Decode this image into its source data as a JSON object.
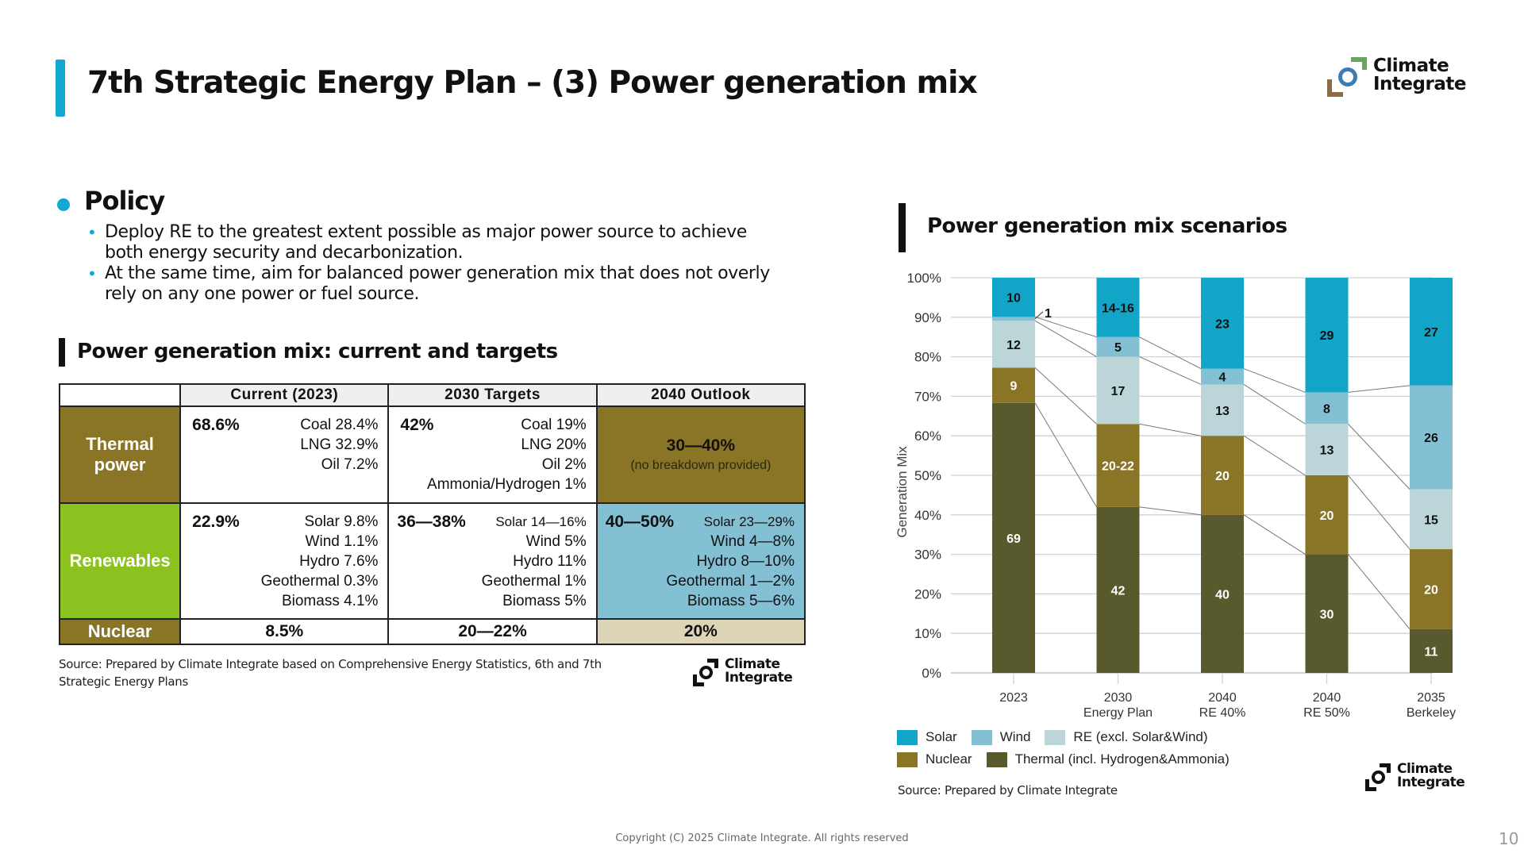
{
  "header": {
    "title": "7th Strategic Energy Plan – (3) Power generation mix",
    "accent_color": "#11a9d3"
  },
  "logo": {
    "line1": "Climate",
    "line2": "Integrate"
  },
  "policy": {
    "heading": "Policy",
    "items": [
      "Deploy RE to the greatest extent possible as major power source to achieve both energy security and decarbonization.",
      "At the same time, aim for balanced power generation mix that does not overly rely on any one power or fuel source."
    ]
  },
  "table_section": {
    "title": "Power generation mix: current and targets",
    "columns": [
      "Current (2023)",
      "2030 Targets",
      "2040 Outlook"
    ],
    "rows": {
      "thermal": {
        "label_line1": "Thermal",
        "label_line2": "power",
        "current_total": "68.6%",
        "current_breakdown": [
          "Coal 28.4%",
          "LNG 32.9%",
          "Oil 7.2%"
        ],
        "target_total": "42%",
        "target_breakdown": [
          "Coal 19%",
          "LNG 20%",
          "Oil 2%",
          "Ammonia/Hydrogen 1%"
        ],
        "outlook_total": "30—40%",
        "outlook_note": "(no breakdown provided)"
      },
      "renewables": {
        "label": "Renewables",
        "current_total": "22.9%",
        "current_breakdown": [
          "Solar 9.8%",
          "Wind 1.1%",
          "Hydro 7.6%",
          "Geothermal 0.3%",
          "Biomass 4.1%"
        ],
        "target_total": "36—38%",
        "target_breakdown": [
          "Solar 14—16%",
          "Wind 5%",
          "Hydro 11%",
          "Geothermal 1%",
          "Biomass 5%"
        ],
        "outlook_total": "40—50%",
        "outlook_breakdown": [
          "Solar 23—29%",
          "Wind 4—8%",
          "Hydro 8—10%",
          "Geothermal 1—2%",
          "Biomass 5—6%"
        ]
      },
      "nuclear": {
        "label": "Nuclear",
        "current": "8.5%",
        "target": "20—22%",
        "outlook": "20%"
      }
    },
    "colors": {
      "thermal": "#8a7425",
      "renewables": "#8cc21f",
      "nuclear": "#8a7425",
      "outlook_renewables": "#84c0d4",
      "outlook_nuclear": "#ddd5b8"
    },
    "source": "Source: Prepared by Climate Integrate based on Comprehensive Energy Statistics, 6th and 7th Strategic Energy Plans"
  },
  "chart_section": {
    "title": "Power generation mix scenarios",
    "source": "Source: Prepared by Climate Integrate"
  },
  "chart_data": {
    "type": "bar",
    "stacked": true,
    "title": "Power generation mix scenarios",
    "xlabel": "",
    "ylabel": "Generation Mix",
    "ylim": [
      0,
      100
    ],
    "yticks": [
      "0%",
      "10%",
      "20%",
      "30%",
      "40%",
      "50%",
      "60%",
      "70%",
      "80%",
      "90%",
      "100%"
    ],
    "grid": true,
    "legend_position": "bottom-left",
    "categories": [
      [
        "2023",
        ""
      ],
      [
        "2030",
        "Energy Plan"
      ],
      [
        "2040",
        "RE 40%"
      ],
      [
        "2040",
        "RE 50%"
      ],
      [
        "2035",
        "Berkeley"
      ]
    ],
    "series": [
      {
        "name": "Thermal (incl. Hydrogen&Ammonia)",
        "color": "#58592c",
        "label_color": "#ffffff",
        "values": [
          69,
          42,
          40,
          30,
          11
        ],
        "labels": [
          "69",
          "42",
          "40",
          "30",
          "11"
        ]
      },
      {
        "name": "Nuclear",
        "color": "#8a7425",
        "label_color": "#ffffff",
        "values": [
          9,
          21,
          20,
          20,
          20
        ],
        "labels": [
          "9",
          "20-22",
          "20",
          "20",
          "20"
        ]
      },
      {
        "name": "RE (excl. Solar&Wind)",
        "color": "#bcd5d9",
        "label_color": "#111111",
        "values": [
          12,
          17,
          13,
          13,
          15
        ],
        "labels": [
          "12",
          "17",
          "13",
          "13",
          "15"
        ]
      },
      {
        "name": "Wind",
        "color": "#84c0d4",
        "label_color": "#111111",
        "values": [
          1,
          5,
          4,
          8,
          26
        ],
        "labels": [
          "1",
          "5",
          "4",
          "8",
          "26"
        ]
      },
      {
        "name": "Solar",
        "color": "#13a5c8",
        "label_color": "#111111",
        "values": [
          10,
          15,
          23,
          29,
          27
        ],
        "labels": [
          "10",
          "14-16",
          "23",
          "29",
          "27"
        ]
      }
    ],
    "legend_rows": [
      [
        "Solar",
        "Wind",
        "RE (excl. Solar&Wind)"
      ],
      [
        "Nuclear",
        "Thermal (incl. Hydrogen&Ammonia)"
      ]
    ]
  },
  "footer": {
    "copyright": "Copyright (C) 2025 Climate Integrate. All rights reserved",
    "page_number": "10"
  }
}
